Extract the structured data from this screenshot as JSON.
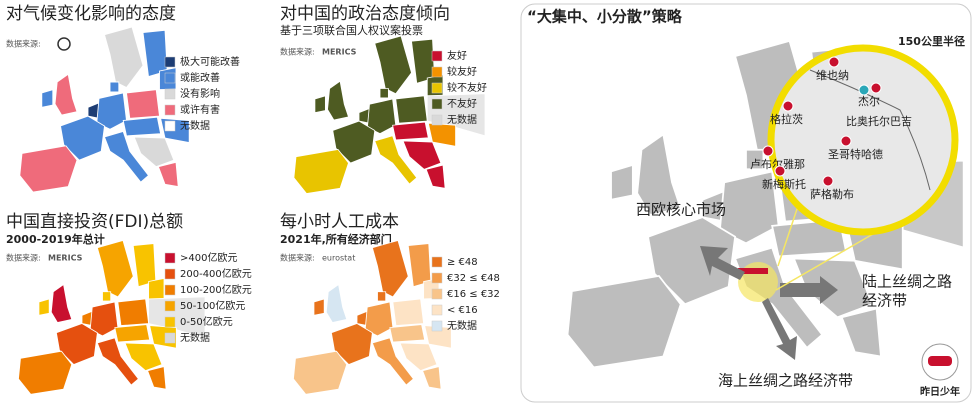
{
  "panels": [
    {
      "title": "对气候变化影响的态度",
      "source_label": "数据来源:",
      "legend": [
        {
          "label": "极大可能改善",
          "color": "#1d3d74"
        },
        {
          "label": "或能改善",
          "color": "#4a87d8"
        },
        {
          "label": "没有影响",
          "color": "#d9d9d9"
        },
        {
          "label": "或许有害",
          "color": "#ef6b7b"
        },
        {
          "label": "无数据",
          "color": "#ffffff"
        }
      ]
    },
    {
      "title": "对中国的政治态度倾向",
      "subtitle": "基于三项联合国人权议案投票",
      "source_label": "数据来源:",
      "source_logo": "MERICS",
      "legend": [
        {
          "label": "友好",
          "color": "#c8102e"
        },
        {
          "label": "较友好",
          "color": "#f39200"
        },
        {
          "label": "较不友好",
          "color": "#e8c400"
        },
        {
          "label": "不友好",
          "color": "#4e5b22"
        },
        {
          "label": "无数据",
          "color": "#d9d9d9"
        }
      ]
    },
    {
      "title": "中国直接投资(FDI)总额",
      "subtitle": "2000-2019年总计",
      "source_label": "数据来源:",
      "source_logo": "MERICS",
      "legend": [
        {
          "label": ">400亿欧元",
          "color": "#c8102e"
        },
        {
          "label": "200-400亿欧元",
          "color": "#e5500f"
        },
        {
          "label": "100-200亿欧元",
          "color": "#f07d00"
        },
        {
          "label": "50-100亿欧元",
          "color": "#f6a400"
        },
        {
          "label": "0-50亿欧元",
          "color": "#f8c300"
        },
        {
          "label": "无数据",
          "color": "#d9d9d9"
        }
      ]
    },
    {
      "title": "每小时人工成本",
      "subtitle": "2021年,所有经济部门",
      "source_label": "数据来源:",
      "source_logo": "eurostat",
      "legend": [
        {
          "label": "≥ €48",
          "color": "#e8731c"
        },
        {
          "label": "€32 ≤ €48",
          "color": "#f39c4a"
        },
        {
          "label": "€16 ≤ €32",
          "color": "#f8c48a"
        },
        {
          "label": "< €16",
          "color": "#fde3c5"
        },
        {
          "label": "无数据",
          "color": "#d6e6f2"
        }
      ]
    }
  ],
  "strategy": {
    "title": "“大集中、小分散”策略",
    "radius": "150公里半径",
    "cities": [
      "维也纳",
      "杰尔",
      "比奥托尔巴吉",
      "格拉茨",
      "圣哥特哈德",
      "卢布尔雅那",
      "新梅斯托",
      "萨格勒布"
    ],
    "west": "西欧核心市场",
    "land_line1": "陆上丝绸之路",
    "land_line2": "经济带",
    "sea": "海上丝绸之路经济带",
    "badge": "昨日少年"
  }
}
